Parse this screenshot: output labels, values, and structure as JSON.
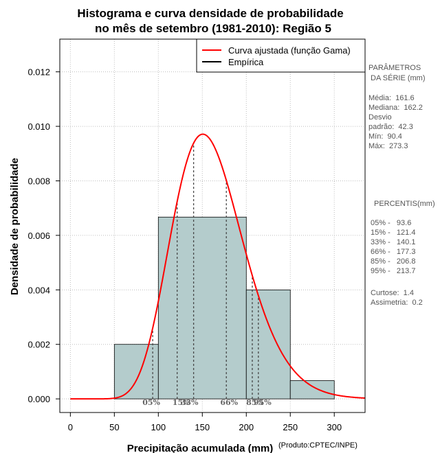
{
  "chart_data": {
    "type": "bar",
    "title": [
      "Histograma e curva densidade de probabilidade",
      "no mês de setembro (1981-2010): Região 5"
    ],
    "xlabel": "Precipitação acumulada (mm)",
    "ylabel": "Densidade de probabilidade",
    "credit": "(Produto:CPTEC/INPE)",
    "xlim": [
      -12,
      335
    ],
    "ylim": [
      -0.0005,
      0.0132
    ],
    "x_ticks": [
      0,
      50,
      100,
      150,
      200,
      250,
      300
    ],
    "y_ticks": [
      0.0,
      0.002,
      0.004,
      0.006,
      0.008,
      0.01,
      0.012
    ],
    "y_tick_labels": [
      "0.000",
      "0.002",
      "0.004",
      "0.006",
      "0.008",
      "0.010",
      "0.012"
    ],
    "grid": true,
    "histogram": {
      "bins": [
        [
          50,
          100
        ],
        [
          100,
          200
        ],
        [
          200,
          250
        ],
        [
          250,
          300
        ]
      ],
      "density": [
        0.002,
        0.00667,
        0.004,
        0.00067
      ],
      "fill": "#b4cccc"
    },
    "fitted_curve": {
      "name": "Curva ajustada (função Gama)",
      "color": "#ff0000",
      "shape": 14.6,
      "scale": 11.07
    },
    "legend": [
      {
        "label": "Curva ajustada (função Gama)",
        "color": "#ff0000"
      },
      {
        "label": "Empírica",
        "color": "#000000"
      }
    ],
    "percentiles": [
      {
        "label": "05%",
        "value": 93.6
      },
      {
        "label": "15%",
        "value": 121.4
      },
      {
        "label": "33%",
        "value": 140.1
      },
      {
        "label": "66%",
        "value": 177.3
      },
      {
        "label": "85%",
        "value": 206.8
      },
      {
        "label": "95%",
        "value": 213.7
      }
    ]
  },
  "side_panel": {
    "param_header": [
      "PARÂMETROS",
      " DA SÉRIE (mm)"
    ],
    "stats": [
      "Média:  161.6",
      "Mediana:  162.2",
      "Desvio",
      "padrão:  42.3",
      "Mín:  90.4",
      "Máx:  273.3"
    ],
    "percentis_header": "PERCENTIS(mm)",
    "percentis": [
      "05% -   93.6",
      "15% -   121.4",
      "33% -   140.1",
      "66% -   177.3",
      "85% -   206.8",
      "95% -   213.7"
    ],
    "extra": [
      "Curtose:  1.4",
      "Assimetria:  0.2"
    ]
  }
}
